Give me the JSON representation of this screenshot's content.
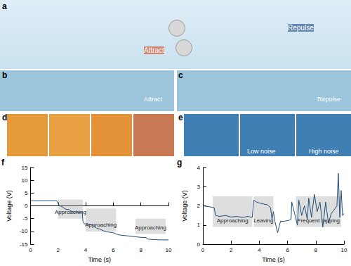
{
  "panels": {
    "a": {
      "letter": "a",
      "texts": [
        "Attract",
        "Repulse"
      ]
    },
    "b": {
      "letter": "b",
      "texts": [
        "Attract"
      ]
    },
    "c": {
      "letter": "c",
      "texts": [
        "Repulse"
      ]
    },
    "d": {
      "letter": "d"
    },
    "e": {
      "letter": "e",
      "texts": [
        "Low noise",
        "High noise"
      ]
    }
  },
  "chart_data": [
    {
      "type": "line",
      "label": "f",
      "xlabel": "Time (s)",
      "ylabel": "Voltage (V)",
      "x": [
        0,
        0.5,
        1,
        1.5,
        1.9,
        2.0,
        2.05,
        2.3,
        2.5,
        2.8,
        3.0,
        3.3,
        3.6,
        3.75,
        3.8,
        3.9,
        4.2,
        4.5,
        4.8,
        5.0,
        5.3,
        5.6,
        6.0,
        6.3,
        6.6,
        7.0,
        7.5,
        8.0,
        8.4,
        8.5,
        9.0,
        9.5,
        10.0
      ],
      "series": [
        {
          "color": "#1f4e79",
          "values": [
            2.0,
            2.0,
            2.0,
            2.0,
            2.0,
            1.0,
            0.2,
            -0.3,
            -1.2,
            -1.5,
            -2.2,
            -2.4,
            -2.6,
            -2.7,
            -6.0,
            -7.0,
            -7.2,
            -7.5,
            -8.8,
            -9.0,
            -9.8,
            -10.2,
            -10.5,
            -11.2,
            -11.5,
            -11.7,
            -12.0,
            -12.3,
            -12.4,
            -13.0,
            -13.2,
            -13.3,
            -13.3
          ]
        }
      ],
      "xlim": [
        0,
        10
      ],
      "xticks": [
        0,
        2,
        4,
        6,
        8,
        10
      ],
      "ylim": [
        -15,
        15
      ],
      "yticks": [
        -15,
        -10,
        -5,
        0,
        5,
        10,
        15
      ],
      "regions": [
        {
          "x": [
            2,
            3.8
          ],
          "y": [
            -5,
            2.5
          ],
          "label": "Approaching"
        },
        {
          "x": [
            4,
            6.2
          ],
          "y": [
            -10,
            -1
          ],
          "label": "Approaching"
        },
        {
          "x": [
            7.6,
            9.8
          ],
          "y": [
            -11,
            -5
          ],
          "label": "Approaching"
        }
      ]
    },
    {
      "type": "line",
      "label": "g",
      "xlabel": "Time (s)",
      "ylabel": "Voltage (V)",
      "x": [
        0,
        0.5,
        0.8,
        0.9,
        1.2,
        1.6,
        2.0,
        2.4,
        2.8,
        3.2,
        3.5,
        3.6,
        3.8,
        4.0,
        4.3,
        4.6,
        4.8,
        4.9,
        5.0,
        5.1,
        5.3,
        5.5,
        5.8,
        6.1,
        6.25,
        6.3,
        6.5,
        6.7,
        6.8,
        7.0,
        7.2,
        7.4,
        7.5,
        7.7,
        7.9,
        8.1,
        8.3,
        8.5,
        8.7,
        8.9,
        9.1,
        9.3,
        9.5,
        9.6,
        9.7,
        9.8,
        9.9,
        10.0
      ],
      "series": [
        {
          "color": "#1f4e79",
          "values": [
            2.0,
            1.95,
            1.9,
            1.5,
            1.45,
            1.5,
            1.42,
            1.45,
            1.4,
            1.45,
            1.4,
            2.3,
            2.2,
            2.15,
            2.1,
            2.05,
            1.9,
            1.3,
            1.7,
            1.2,
            0.6,
            1.2,
            1.2,
            1.25,
            1.3,
            2.2,
            1.6,
            1.0,
            2.3,
            1.5,
            2.0,
            1.3,
            2.4,
            1.4,
            2.6,
            1.7,
            2.2,
            0.9,
            2.2,
            1.1,
            1.6,
            1.8,
            2.0,
            3.7,
            1.4,
            2.8,
            1.5,
            1.6
          ]
        }
      ],
      "xlim": [
        0,
        10
      ],
      "xticks": [
        0,
        2,
        4,
        6,
        8,
        10
      ],
      "ylim": [
        0,
        4
      ],
      "yticks": [
        0,
        1,
        2,
        3,
        4
      ],
      "regions": [
        {
          "x": [
            0.7,
            3.5
          ],
          "y": [
            0.9,
            2.5
          ],
          "label": "Approaching"
        },
        {
          "x": [
            3.6,
            5.0
          ],
          "y": [
            0.9,
            2.5
          ],
          "label": "Leaving"
        },
        {
          "x": [
            6.6,
            9.8
          ],
          "y": [
            0.9,
            2.5
          ],
          "label": "Frequent tapping"
        }
      ]
    }
  ]
}
